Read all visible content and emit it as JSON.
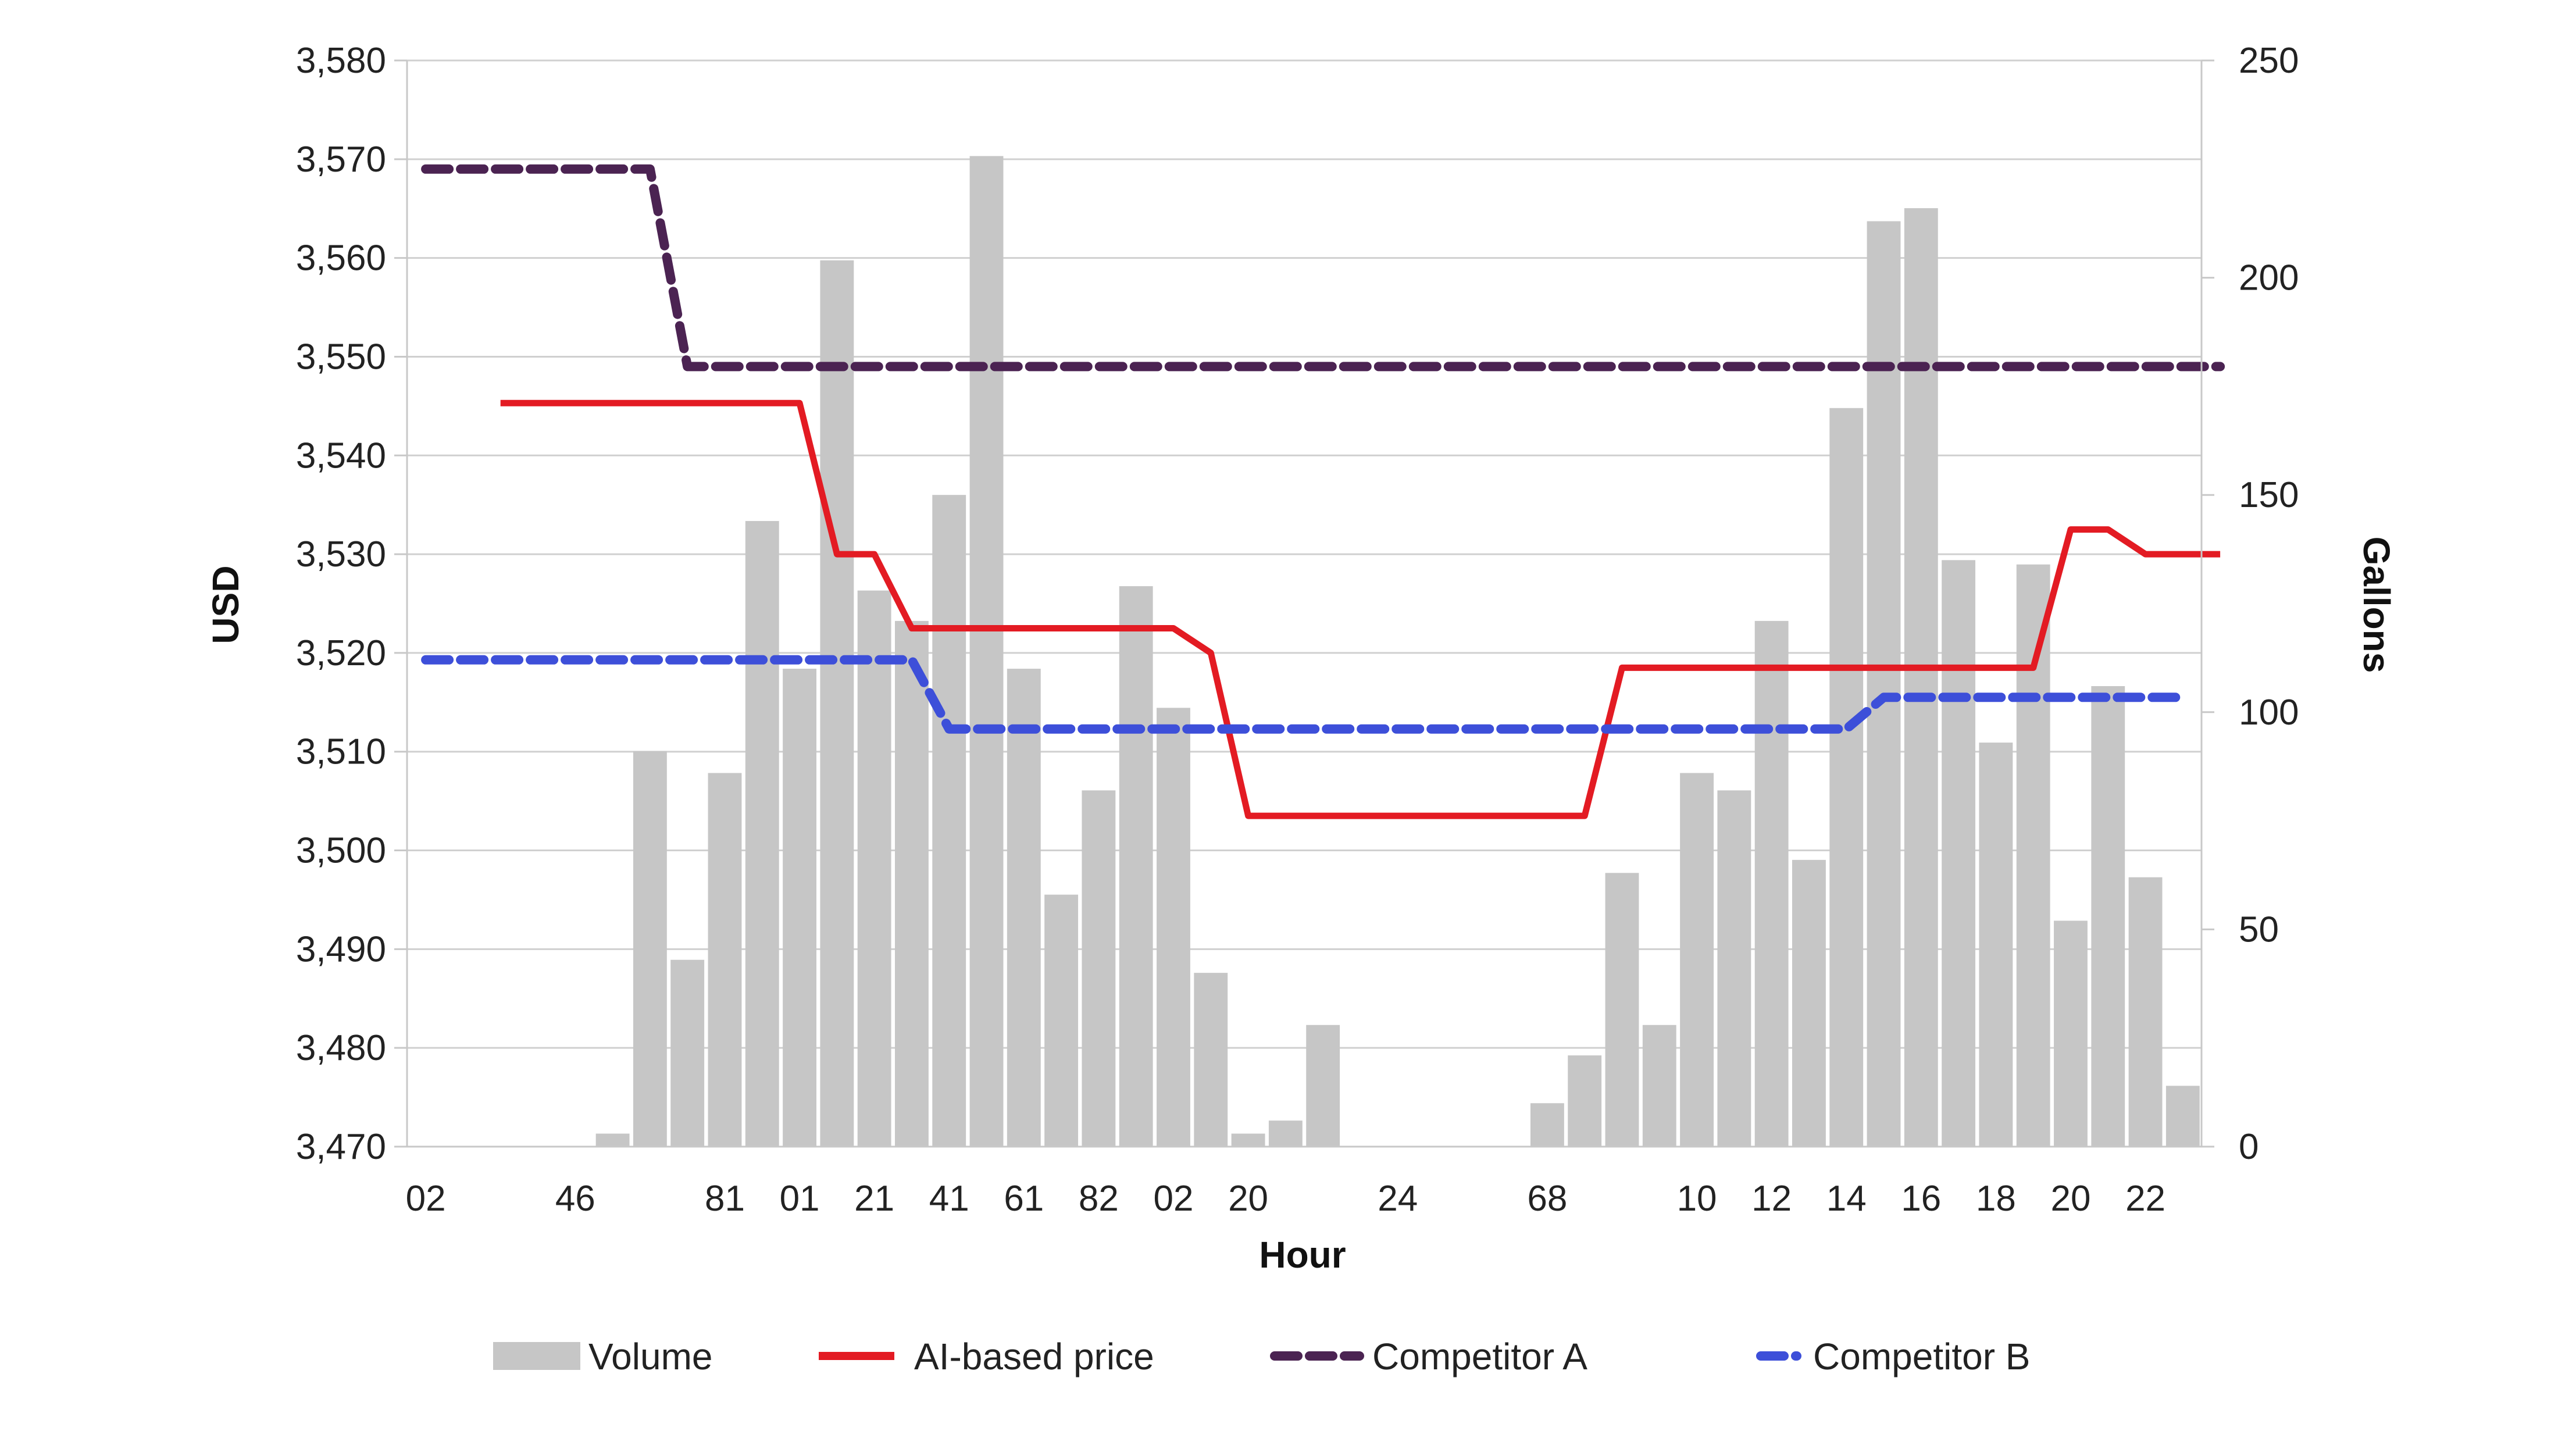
{
  "chart_data": {
    "type": "bar",
    "title": "",
    "xlabel": "Hour",
    "ylabel": "USD",
    "y2label": "Gallons",
    "ylim": [
      3470,
      3580
    ],
    "y2lim": [
      0,
      250
    ],
    "y_ticks": [
      "3,470",
      "3,480",
      "3,490",
      "3,500",
      "3,510",
      "3,520",
      "3,530",
      "3,540",
      "3,550",
      "3,560",
      "3,570",
      "3,580"
    ],
    "y2_ticks": [
      "0",
      "50",
      "100",
      "150",
      "200",
      "250"
    ],
    "x_tick_labels": [
      {
        "index": 0,
        "label": "02"
      },
      {
        "index": 4,
        "label": "46"
      },
      {
        "index": 8,
        "label": "81"
      },
      {
        "index": 10,
        "label": "01"
      },
      {
        "index": 12,
        "label": "21"
      },
      {
        "index": 14,
        "label": "41"
      },
      {
        "index": 16,
        "label": "61"
      },
      {
        "index": 18,
        "label": "82"
      },
      {
        "index": 20,
        "label": "02"
      },
      {
        "index": 22,
        "label": "20"
      },
      {
        "index": 26,
        "label": "24"
      },
      {
        "index": 30,
        "label": "68"
      },
      {
        "index": 34,
        "label": "10"
      },
      {
        "index": 36,
        "label": "12"
      },
      {
        "index": 38,
        "label": "14"
      },
      {
        "index": 40,
        "label": "16"
      },
      {
        "index": 42,
        "label": "18"
      },
      {
        "index": 44,
        "label": "20"
      },
      {
        "index": 46,
        "label": "22"
      }
    ],
    "grid": true,
    "legend_position": "bottom",
    "series": [
      {
        "name": "Volume",
        "kind": "bar",
        "axis": "right",
        "color": "#c6c6c6",
        "values": [
          0,
          0,
          0,
          0,
          0,
          3,
          91,
          43,
          86,
          144,
          110,
          204,
          128,
          121,
          150,
          228,
          110,
          58,
          82,
          129,
          101,
          40,
          3,
          6,
          28,
          0,
          0,
          0,
          0,
          0,
          10,
          21,
          63,
          28,
          86,
          82,
          121,
          66,
          170,
          213,
          216,
          135,
          93,
          134,
          52,
          106,
          62,
          14
        ]
      },
      {
        "name": "AI-based price",
        "kind": "line",
        "axis": "left",
        "color": "#e31b23",
        "dash": "solid",
        "values": [
          null,
          null,
          3545.3,
          3545.3,
          3545.3,
          3545.3,
          3545.3,
          3545.3,
          3545.3,
          3545.3,
          3545.3,
          3530.0,
          3530.0,
          3522.5,
          3522.5,
          3522.5,
          3522.5,
          3522.5,
          3522.5,
          3522.5,
          3522.5,
          3520.0,
          3503.5,
          3503.5,
          3503.5,
          3503.5,
          3503.5,
          3503.5,
          3503.5,
          3503.5,
          3503.5,
          3503.5,
          3518.5,
          3518.5,
          3518.5,
          3518.5,
          3518.5,
          3518.5,
          3518.5,
          3518.5,
          3518.5,
          3518.5,
          3518.5,
          3518.5,
          3532.5,
          3532.5,
          3530.0,
          3530.0,
          3530.0
        ]
      },
      {
        "name": "Competitor A",
        "kind": "line",
        "axis": "left",
        "color": "#4b2352",
        "dash": "dashed",
        "values": [
          3569.0,
          3569.0,
          3569.0,
          3569.0,
          3569.0,
          3569.0,
          3569.0,
          3549.0,
          3549.0,
          3549.0,
          3549.0,
          3549.0,
          3549.0,
          3549.0,
          3549.0,
          3549.0,
          3549.0,
          3549.0,
          3549.0,
          3549.0,
          3549.0,
          3549.0,
          3549.0,
          3549.0,
          3549.0,
          3549.0,
          3549.0,
          3549.0,
          3549.0,
          3549.0,
          3549.0,
          3549.0,
          3549.0,
          3549.0,
          3549.0,
          3549.0,
          3549.0,
          3549.0,
          3549.0,
          3549.0,
          3549.0,
          3549.0,
          3549.0,
          3549.0,
          3549.0,
          3549.0,
          3549.0,
          3549.0,
          3549.0
        ]
      },
      {
        "name": "Competitor B",
        "kind": "line",
        "axis": "left",
        "color": "#3d4fd9",
        "dash": "dashed",
        "values": [
          3519.3,
          3519.3,
          3519.3,
          3519.3,
          3519.3,
          3519.3,
          3519.3,
          3519.3,
          3519.3,
          3519.3,
          3519.3,
          3519.3,
          3519.3,
          3519.3,
          3512.3,
          3512.3,
          3512.3,
          3512.3,
          3512.3,
          3512.3,
          3512.3,
          3512.3,
          3512.3,
          3512.3,
          3512.3,
          3512.3,
          3512.3,
          3512.3,
          3512.3,
          3512.3,
          3512.3,
          3512.3,
          3512.3,
          3512.3,
          3512.3,
          3512.3,
          3512.3,
          3512.3,
          3512.3,
          3515.5,
          3515.5,
          3515.5,
          3515.5,
          3515.5,
          3515.5,
          3515.5,
          3515.5,
          3515.5,
          null
        ]
      }
    ]
  }
}
